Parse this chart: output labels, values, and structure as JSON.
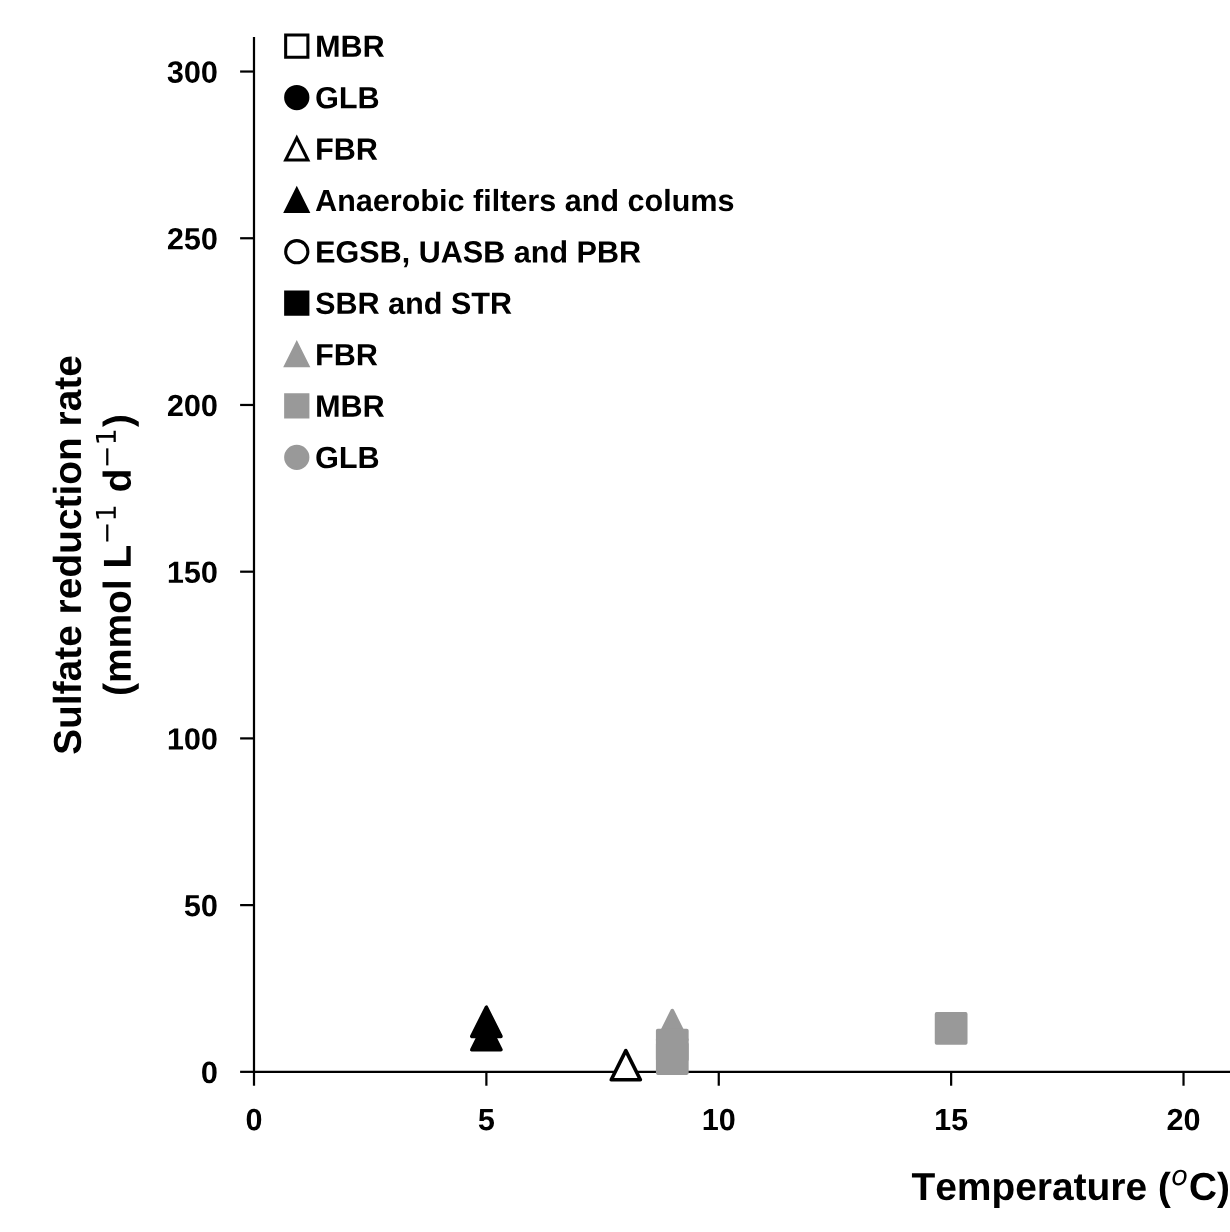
{
  "chart_data": {
    "type": "scatter",
    "xlabel": "Temperature ($^{o}$C)",
    "ylabel": "Sulfate reduction rate\n(mmol L$^{−1}$ d$^{−1}$)",
    "xlim": [
      0,
      21
    ],
    "xticks": [
      0,
      5,
      10,
      15,
      20
    ],
    "ylim": [
      0,
      310
    ],
    "yticks": [
      0,
      50,
      100,
      150,
      200,
      250,
      300
    ],
    "grid": false,
    "legend": "top left",
    "series": [
      {
        "name": "MBR",
        "color": "#ffffff",
        "marker": "square"
      },
      {
        "name": "GLB",
        "color": "#000000",
        "marker": "circle"
      },
      {
        "name": "FBR",
        "color": "#ffffff",
        "marker": "triangle",
        "x": [
          8
        ],
        "values": [
          2
        ]
      },
      {
        "name": "Anaerobic filters and colums",
        "color": "#000000",
        "marker": "triangle",
        "x": [
          5,
          5
        ],
        "values": [
          15,
          11
        ]
      },
      {
        "name": "EGSB, UASB and PBR",
        "color": "#ffffff",
        "marker": "circle"
      },
      {
        "name": "SBR and STR",
        "color": "#000000",
        "marker": "square"
      },
      {
        "name": "FBR",
        "color": "#999999",
        "marker": "triangle",
        "x": [
          9
        ],
        "values": [
          14
        ]
      },
      {
        "name": "MBR",
        "color": "#999999",
        "marker": "square",
        "x": [
          9,
          9,
          15
        ],
        "values": [
          8,
          4,
          13
        ]
      },
      {
        "name": "GLB",
        "color": "#999999",
        "marker": "circle"
      }
    ]
  }
}
